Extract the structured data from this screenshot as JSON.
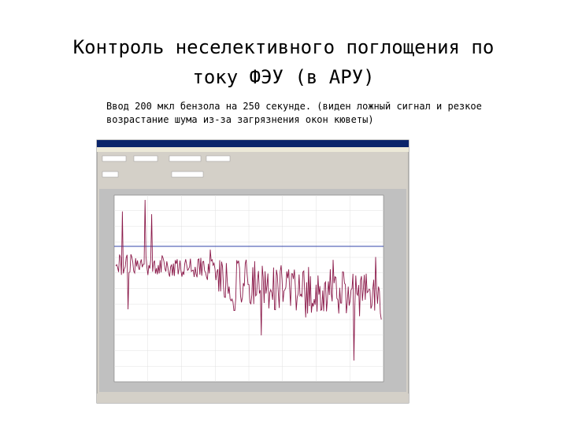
{
  "slide": {
    "title": [
      "Контроль неселективного поглощения по",
      "току ФЭУ (в АРУ)"
    ],
    "caption": [
      "Ввод 200 мкл бензола на 250 секунде. (виден ложный сигнал и резкое",
      "возрастание шума из-за загрязнения окон кюветы)"
    ]
  }
}
